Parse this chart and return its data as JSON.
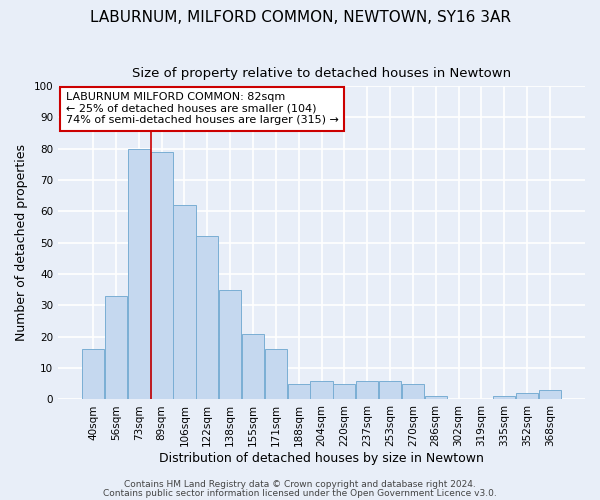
{
  "title": "LABURNUM, MILFORD COMMON, NEWTOWN, SY16 3AR",
  "subtitle": "Size of property relative to detached houses in Newtown",
  "xlabel": "Distribution of detached houses by size in Newtown",
  "ylabel": "Number of detached properties",
  "bin_labels": [
    "40sqm",
    "56sqm",
    "73sqm",
    "89sqm",
    "106sqm",
    "122sqm",
    "138sqm",
    "155sqm",
    "171sqm",
    "188sqm",
    "204sqm",
    "220sqm",
    "237sqm",
    "253sqm",
    "270sqm",
    "286sqm",
    "302sqm",
    "319sqm",
    "335sqm",
    "352sqm",
    "368sqm"
  ],
  "bar_heights": [
    16,
    33,
    80,
    79,
    62,
    52,
    35,
    21,
    16,
    5,
    6,
    5,
    6,
    6,
    5,
    1,
    0,
    0,
    1,
    2,
    3
  ],
  "bar_color": "#c5d8ef",
  "bar_edgecolor": "#7aaed4",
  "vline_x": 3.0,
  "vline_color": "#cc0000",
  "annotation_text": "LABURNUM MILFORD COMMON: 82sqm\n← 25% of detached houses are smaller (104)\n74% of semi-detached houses are larger (315) →",
  "annotation_box_color": "#ffffff",
  "annotation_box_edgecolor": "#cc0000",
  "ylim": [
    0,
    100
  ],
  "yticks": [
    0,
    10,
    20,
    30,
    40,
    50,
    60,
    70,
    80,
    90,
    100
  ],
  "footer_line1": "Contains HM Land Registry data © Crown copyright and database right 2024.",
  "footer_line2": "Contains public sector information licensed under the Open Government Licence v3.0.",
  "background_color": "#e8eef8",
  "plot_bg_color": "#e8eef8",
  "grid_color": "#ffffff",
  "title_fontsize": 11,
  "subtitle_fontsize": 9.5,
  "axis_label_fontsize": 9,
  "tick_fontsize": 7.5,
  "annotation_fontsize": 8,
  "footer_fontsize": 6.5
}
